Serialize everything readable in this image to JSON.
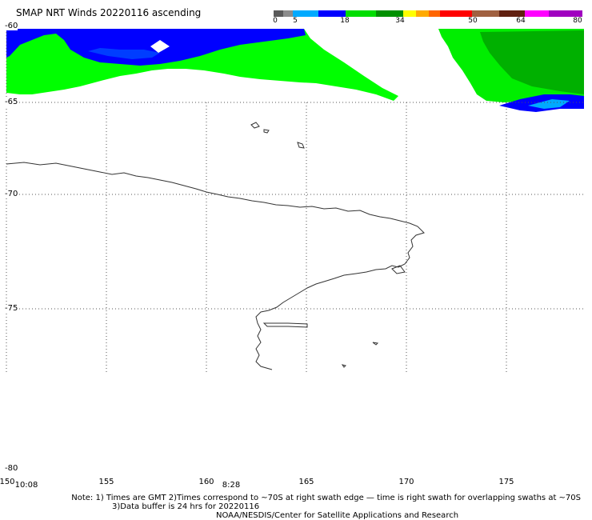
{
  "title": "SMAP NRT Winds 20220116 ascending",
  "colorbar": {
    "labels": [
      "0",
      "5",
      "18",
      "34",
      "50",
      "64",
      "80"
    ],
    "colors": [
      "#5a5a5a",
      "#8c8c8c",
      "#00aaff",
      "#0000ff",
      "#00ff00",
      "#00a000",
      "#ffff00",
      "#ff8800",
      "#ff0000",
      "#a05030",
      "#602010",
      "#ff00ff",
      "#a000a0"
    ]
  },
  "latitude_labels": [
    "-60",
    "-65",
    "-70",
    "-75",
    "-80"
  ],
  "longitude_labels": [
    "150",
    "155",
    "160",
    "165",
    "170",
    "175"
  ],
  "swath_times": [
    "10:08",
    "8:28"
  ],
  "notes": {
    "line1": "Note: 1) Times are GMT 2)Times correspond to ~70S at right swath edge — time is right swath for overlapping swaths at ~70S",
    "line2": "3)Data buffer is 24 hrs for 20220116",
    "line3": "NOAA/NESDIS/Center for Satellite Applications and Research"
  },
  "wind_colors": {
    "light": "#00ff00",
    "mid": "#00c000",
    "strong": "#00b000",
    "blue": "#0000ff",
    "lightblue": "#00aaff"
  }
}
